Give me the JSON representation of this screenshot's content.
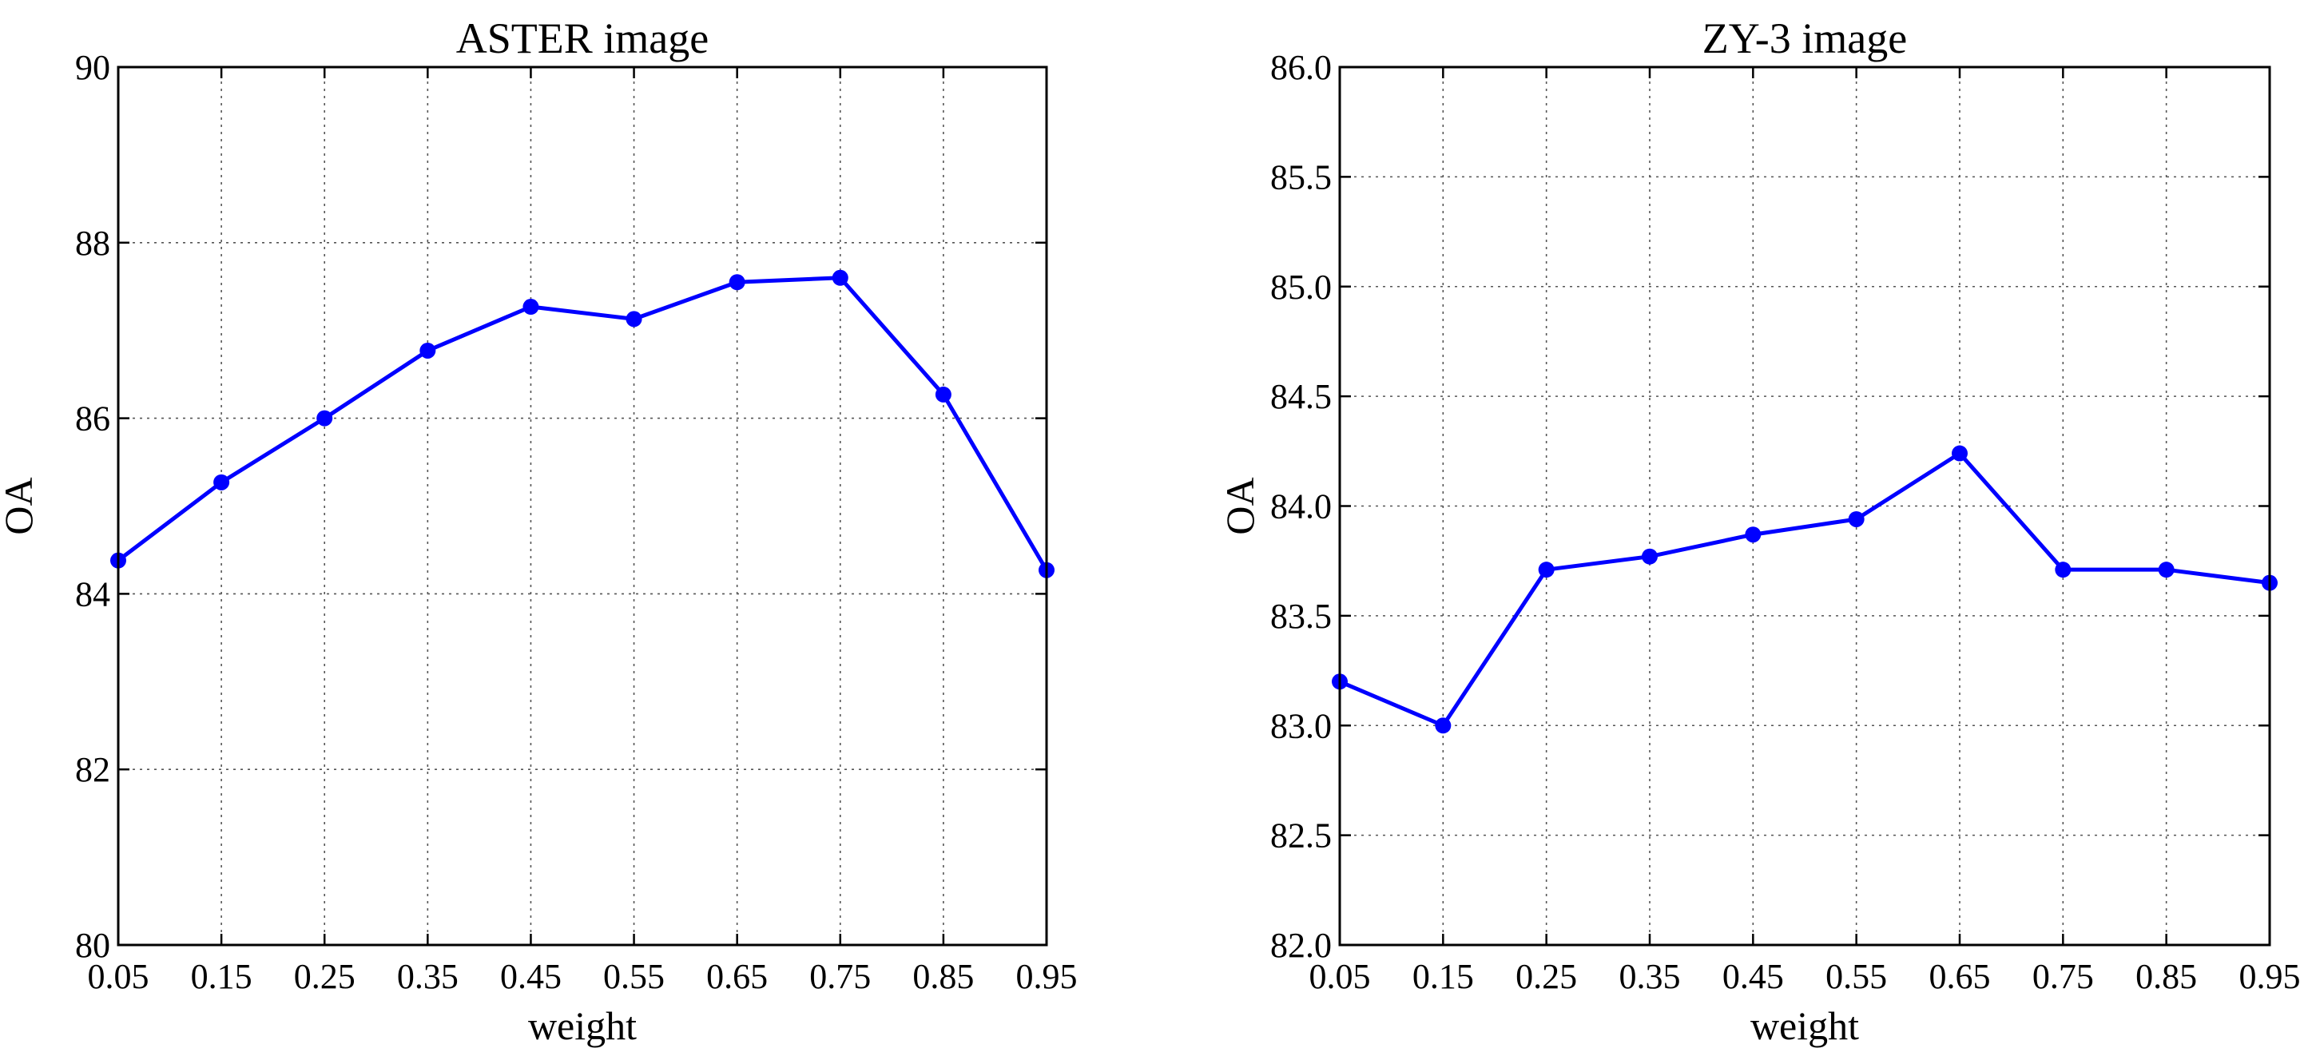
{
  "chart_data": [
    {
      "type": "line",
      "title": "ASTER image",
      "xlabel": "weight",
      "ylabel": "OA",
      "xlim": [
        0.05,
        0.95
      ],
      "ylim": [
        80,
        90
      ],
      "xticks": [
        "0.05",
        "0.15",
        "0.25",
        "0.35",
        "0.45",
        "0.55",
        "0.65",
        "0.75",
        "0.85",
        "0.95"
      ],
      "yticks": [
        "80",
        "82",
        "84",
        "86",
        "88",
        "90"
      ],
      "grid": true,
      "series": [
        {
          "color": "#0000ff",
          "x": [
            0.05,
            0.15,
            0.25,
            0.35,
            0.45,
            0.55,
            0.65,
            0.75,
            0.85,
            0.95
          ],
          "values": [
            84.38,
            85.27,
            86.0,
            86.77,
            87.27,
            87.13,
            87.55,
            87.6,
            86.27,
            84.27
          ]
        }
      ]
    },
    {
      "type": "line",
      "title": "ZY-3 image",
      "xlabel": "weight",
      "ylabel": "OA",
      "xlim": [
        0.05,
        0.95
      ],
      "ylim": [
        82.0,
        86.0
      ],
      "xticks": [
        "0.05",
        "0.15",
        "0.25",
        "0.35",
        "0.45",
        "0.55",
        "0.65",
        "0.75",
        "0.85",
        "0.95"
      ],
      "yticks": [
        "82.0",
        "82.5",
        "83.0",
        "83.5",
        "84.0",
        "84.5",
        "85.0",
        "85.5",
        "86.0"
      ],
      "grid": true,
      "series": [
        {
          "color": "#0000ff",
          "x": [
            0.05,
            0.15,
            0.25,
            0.35,
            0.45,
            0.55,
            0.65,
            0.75,
            0.85,
            0.95
          ],
          "values": [
            83.2,
            83.0,
            83.71,
            83.77,
            83.87,
            83.94,
            84.24,
            83.71,
            83.71,
            83.65
          ]
        }
      ]
    }
  ]
}
